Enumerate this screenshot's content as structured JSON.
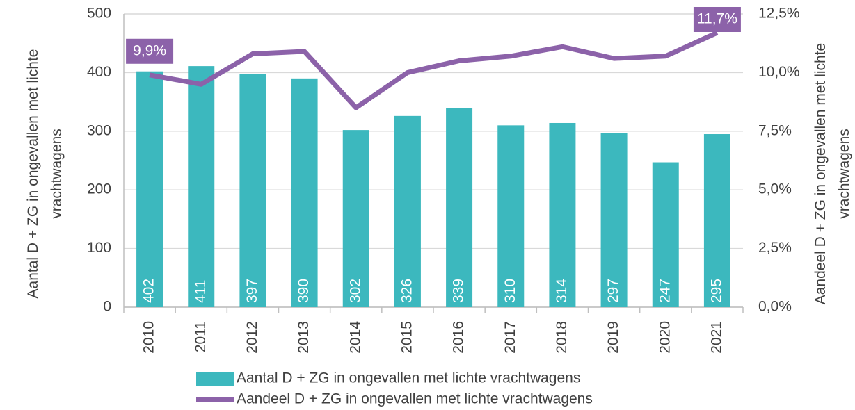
{
  "chart_data": {
    "type": "bar-line",
    "categories": [
      "2010",
      "2011",
      "2012",
      "2013",
      "2014",
      "2015",
      "2016",
      "2017",
      "2018",
      "2019",
      "2020",
      "2021"
    ],
    "series": [
      {
        "name": "Aantal D + ZG in ongevallen met lichte vrachtwagens",
        "type": "bar",
        "color": "#3cb8be",
        "values": [
          402,
          411,
          397,
          390,
          302,
          326,
          339,
          310,
          314,
          297,
          247,
          295
        ]
      },
      {
        "name": "Aandeel D + ZG in ongevallen met lichte vrachtwagens",
        "type": "line",
        "axis": "y2",
        "color": "#8c62a9",
        "values": [
          9.9,
          9.5,
          10.8,
          10.9,
          8.5,
          10.0,
          10.5,
          10.7,
          11.1,
          10.6,
          10.7,
          11.7
        ],
        "value_labels": [
          "9,9%",
          null,
          null,
          null,
          null,
          null,
          null,
          null,
          null,
          null,
          null,
          "11,7%"
        ]
      }
    ],
    "ylabel": "Aantal D + ZG in ongevallen met lichte vrachtwagens",
    "y2label": "Aandeel D + ZG in ongevallen met lichte vrachtwagens",
    "ylim": [
      0,
      500
    ],
    "yticks": [
      0,
      100,
      200,
      300,
      400,
      500
    ],
    "y2lim": [
      0,
      12.5
    ],
    "y2ticks": [
      {
        "value": 0,
        "label": "0,0%"
      },
      {
        "value": 2.5,
        "label": "2,5%"
      },
      {
        "value": 5,
        "label": "5,0%"
      },
      {
        "value": 7.5,
        "label": "7,5%"
      },
      {
        "value": 10,
        "label": "10,0%"
      },
      {
        "value": 12.5,
        "label": "12,5%"
      }
    ],
    "grid": true,
    "legend": "bottom"
  }
}
